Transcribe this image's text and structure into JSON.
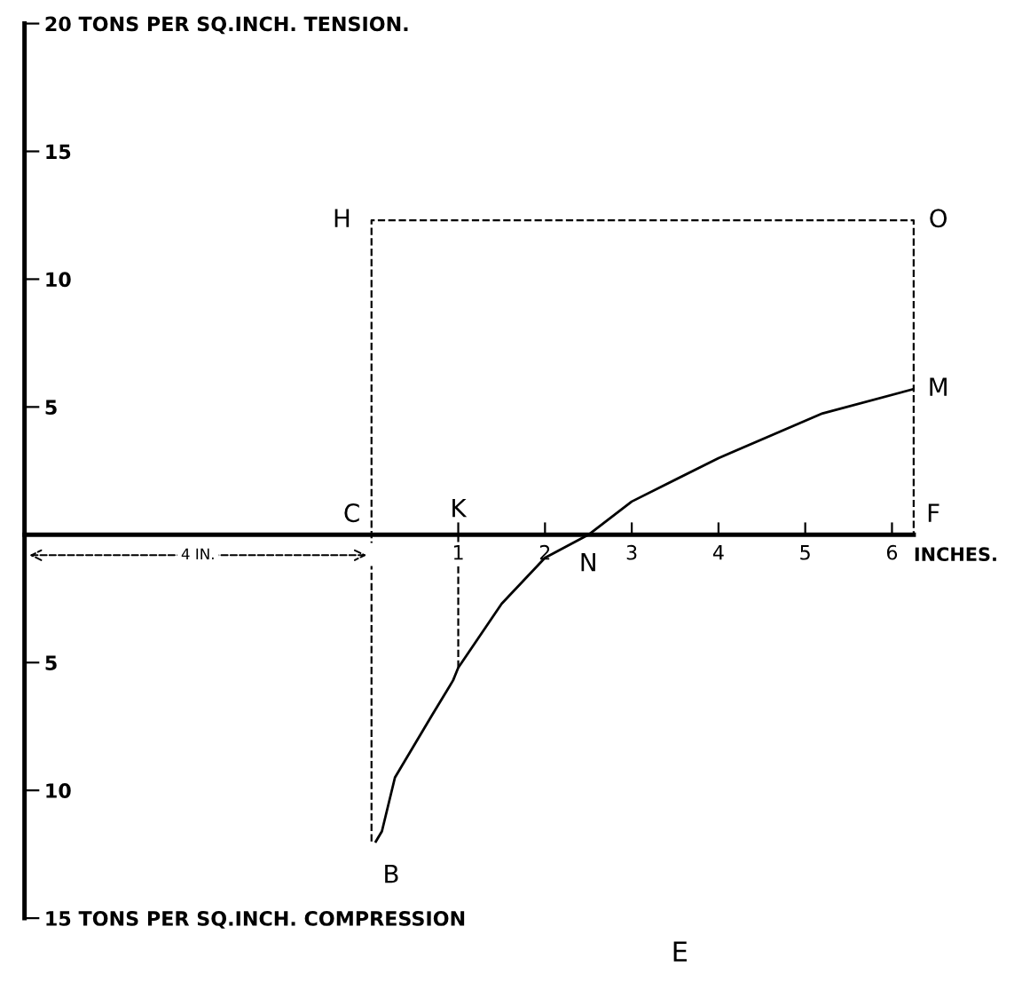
{
  "chart_data": {
    "type": "line",
    "xlabel": "INCHES.",
    "xlim": [
      -4,
      6.25
    ],
    "xticks": [
      1,
      2,
      3,
      4,
      5,
      6
    ],
    "ylim": [
      -15,
      20
    ],
    "yticks": [
      {
        "value": 20,
        "label": "20 TONS PER SQ.INCH. TENSION."
      },
      15,
      10,
      5,
      {
        "value": 0,
        "label": null
      },
      {
        "value": -5,
        "label": "5"
      },
      {
        "value": -10,
        "label": "10"
      },
      {
        "value": -15,
        "label": "15 TONS PER SQ.INCH. COMPRESSION"
      }
    ],
    "series": [
      {
        "color": "#000000",
        "line_style": "solid",
        "x": [
          0.05,
          0.12,
          0.27,
          0.69,
          0.94,
          1,
          1.5,
          2,
          2.5,
          3,
          4,
          5.2,
          6.25
        ],
        "values": [
          -12,
          -11.6,
          -9.5,
          -7.1,
          -5.7,
          -5.2,
          -2.7,
          -0.9,
          0,
          1.3,
          3,
          4.75,
          5.7
        ]
      },
      {
        "color": "#000000",
        "line_style": "dashed",
        "x": [
          0,
          0,
          0,
          6.25,
          6.25
        ],
        "values": [
          -12,
          0,
          12.3,
          12.3,
          0
        ]
      },
      {
        "color": "#000000",
        "line_style": "dashed",
        "x": [
          1,
          1
        ],
        "values": [
          0,
          -5.2
        ]
      }
    ],
    "annotations": [
      {
        "text": "C",
        "x": 0,
        "y": 0
      },
      {
        "text": "K",
        "x": 1,
        "y": 0
      },
      {
        "text": "N",
        "x": 2.5,
        "y": 0
      },
      {
        "text": "F",
        "x": 6.25,
        "y": 0
      },
      {
        "text": "H",
        "x": 0,
        "y": 12.3
      },
      {
        "text": "O",
        "x": 6.25,
        "y": 12.3
      },
      {
        "text": "M",
        "x": 6.25,
        "y": 5.7
      },
      {
        "text": "B",
        "x": 0,
        "y": -12
      },
      {
        "text": "4 IN.",
        "x": -2,
        "y": -0.8
      },
      "E"
    ]
  }
}
